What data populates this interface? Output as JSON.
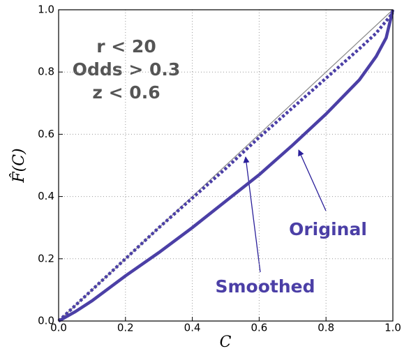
{
  "chart_data": {
    "type": "line",
    "xlabel": "C",
    "ylabel": "F̂(C)",
    "annotations": [
      "r < 20",
      "Odds > 0.3",
      "z < 0.6"
    ],
    "series": [
      {
        "color": "#888888",
        "x": [
          0,
          1
        ],
        "values": [
          0,
          1
        ]
      },
      {
        "name": "Original",
        "color": "#4b3fa6",
        "style": "solid",
        "x": [
          0,
          0.05,
          0.1,
          0.2,
          0.3,
          0.4,
          0.5,
          0.6,
          0.7,
          0.8,
          0.9,
          0.95,
          0.98,
          1.0
        ],
        "values": [
          0,
          0.03,
          0.065,
          0.145,
          0.22,
          0.3,
          0.385,
          0.47,
          0.565,
          0.665,
          0.775,
          0.85,
          0.91,
          1.0
        ]
      },
      {
        "name": "Smoothed",
        "color": "#4b3fa6",
        "style": "dotted",
        "x": [
          0,
          0.1,
          0.2,
          0.3,
          0.4,
          0.5,
          0.6,
          0.7,
          0.8,
          0.9,
          0.95,
          1.0
        ],
        "values": [
          0,
          0.1,
          0.2,
          0.3,
          0.395,
          0.49,
          0.59,
          0.685,
          0.78,
          0.875,
          0.925,
          0.99
        ]
      }
    ],
    "xlim": [
      0,
      1
    ],
    "ylim": [
      0,
      1
    ],
    "xticks": [
      {
        "value": 0,
        "label": "0.0"
      },
      0.2,
      0.4,
      0.6,
      0.8,
      {
        "value": 1,
        "label": "1.0"
      }
    ],
    "yticks": [
      {
        "value": 0,
        "label": "0.0"
      },
      0.2,
      0.4,
      0.6,
      0.8,
      {
        "value": 1,
        "label": "1.0"
      }
    ],
    "grid": true
  }
}
